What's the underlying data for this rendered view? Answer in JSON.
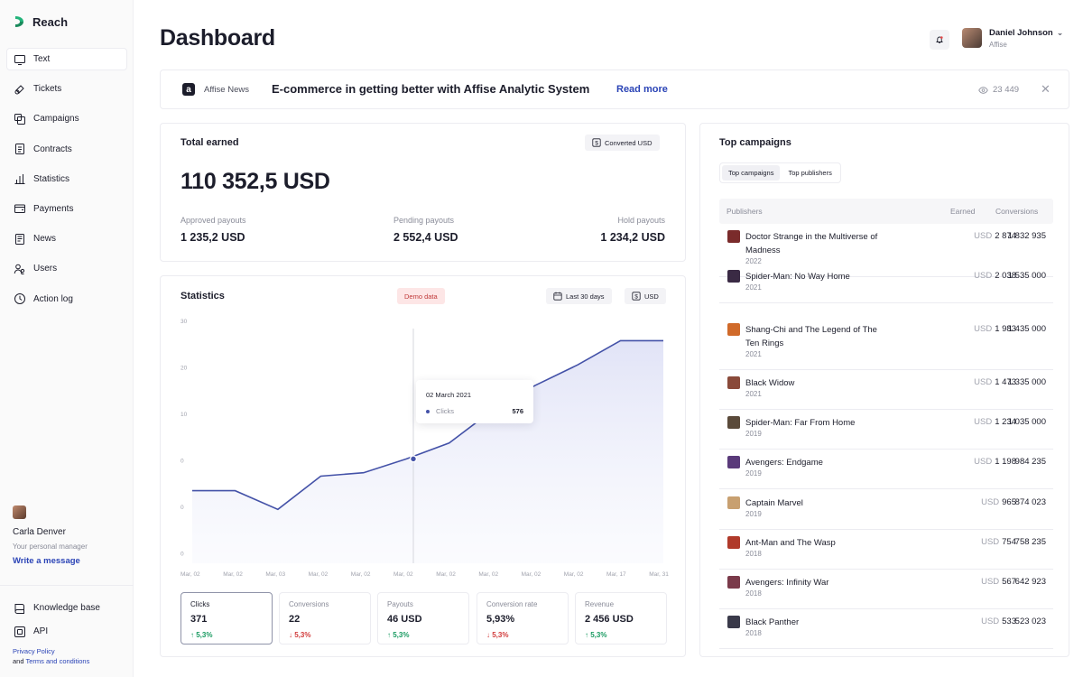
{
  "app": {
    "name": "Reach"
  },
  "sidebar": {
    "items": [
      {
        "label": "Text",
        "icon": "monitor-icon",
        "active": true
      },
      {
        "label": "Tickets",
        "icon": "ticket-icon"
      },
      {
        "label": "Campaigns",
        "icon": "stack-icon"
      },
      {
        "label": "Contracts",
        "icon": "document-icon"
      },
      {
        "label": "Statistics",
        "icon": "bar-chart-icon"
      },
      {
        "label": "Payments",
        "icon": "wallet-icon"
      },
      {
        "label": "News",
        "icon": "newspaper-icon"
      },
      {
        "label": "Users",
        "icon": "users-icon"
      },
      {
        "label": "Action log",
        "icon": "clock-icon"
      }
    ],
    "manager": {
      "name": "Carla Denver",
      "role": "Your personal manager",
      "link": "Write a message"
    },
    "bottom": [
      {
        "label": "Knowledge base",
        "icon": "book-icon"
      },
      {
        "label": "API",
        "icon": "api-icon"
      }
    ],
    "legal": {
      "privacy": "Privacy Policy",
      "and": "and",
      "terms": "Terms and conditions"
    }
  },
  "header": {
    "title": "Dashboard",
    "user": {
      "name": "Daniel Johnson",
      "org": "Affise"
    }
  },
  "news": {
    "source": "Affise News",
    "headline": "E-commerce in getting better with Affise Analytic System",
    "read_more": "Read more",
    "views": "23 449"
  },
  "earned": {
    "title": "Total earned",
    "badge": "Converted USD",
    "total": "110 352,5 USD",
    "payouts": [
      {
        "label": "Approved payouts",
        "value": "1 235,2 USD"
      },
      {
        "label": "Pending payouts",
        "value": "2 552,4 USD"
      },
      {
        "label": "Hold payouts",
        "value": "1 234,2 USD"
      }
    ]
  },
  "statistics": {
    "title": "Statistics",
    "demo": "Demo data",
    "period": "Last 30 days",
    "currency": "USD",
    "tooltip": {
      "date": "02 March 2021",
      "label": "Clicks",
      "value": "576"
    },
    "metrics": [
      {
        "label": "Clicks",
        "value": "371",
        "change": "5,3%",
        "dir": "up",
        "active": true
      },
      {
        "label": "Conversions",
        "value": "22",
        "change": "5,3%",
        "dir": "down"
      },
      {
        "label": "Payouts",
        "value": "46 USD",
        "change": "5,3%",
        "dir": "up"
      },
      {
        "label": "Conversion rate",
        "value": "5,93%",
        "change": "5,3%",
        "dir": "down"
      },
      {
        "label": "Revenue",
        "value": "2 456 USD",
        "change": "5,3%",
        "dir": "up"
      }
    ]
  },
  "chart_data": {
    "type": "area",
    "x": [
      "Mar, 02",
      "Mar, 02",
      "Mar, 03",
      "Mar, 02",
      "Mar, 02",
      "Mar, 02",
      "Mar, 02",
      "Mar, 02",
      "Mar, 02",
      "Mar, 02",
      "Mar, 17",
      "Mar, 31"
    ],
    "y_ticks": [
      "30",
      "20",
      "10",
      "0",
      "0",
      "0"
    ],
    "series": [
      {
        "values": [
          5.5,
          5.5,
          2.8,
          7.6,
          8.1,
          10.1,
          12.4,
          17.1,
          20.7,
          23.7,
          27.2,
          27.2
        ]
      }
    ],
    "ylim": [
      -5,
      30
    ],
    "highlight_index": 6,
    "line_color": "#4452a8"
  },
  "top_campaigns": {
    "title": "Top campaigns",
    "tabs": [
      {
        "label": "Top campaigns",
        "active": true
      },
      {
        "label": "Top publishers"
      }
    ],
    "columns": {
      "publishers": "Publishers",
      "earned": "Earned",
      "conversions": "Conversions"
    },
    "rows": [
      {
        "title": "Doctor Strange in the Multiverse of Madness",
        "year": "2022",
        "currency": "USD",
        "earned": "2 874",
        "conversions": "1 832 935",
        "color": "#7a2b2b"
      },
      {
        "title": "Spider-Man: No Way Home",
        "year": "2021",
        "currency": "USD",
        "earned": "2 038",
        "conversions": "1 535 000",
        "color": "#3a2a44"
      },
      {
        "title": "Shang-Chi and The Legend of The Ten Rings",
        "year": "2021",
        "currency": "USD",
        "earned": "1 983",
        "conversions": "1 435 000",
        "color": "#d06a2a"
      },
      {
        "title": "Black Widow",
        "year": "2021",
        "currency": "USD",
        "earned": "1 473",
        "conversions": "1 335 000",
        "color": "#8a4a3a"
      },
      {
        "title": "Spider-Man: Far From Home",
        "year": "2019",
        "currency": "USD",
        "earned": "1 234",
        "conversions": "1 035 000",
        "color": "#5a4a3a"
      },
      {
        "title": "Avengers: Endgame",
        "year": "2019",
        "currency": "USD",
        "earned": "1 198",
        "conversions": "984 235",
        "color": "#5a3a7a"
      },
      {
        "title": "Captain Marvel",
        "year": "2019",
        "currency": "USD",
        "earned": "965",
        "conversions": "874 023",
        "color": "#c8a070"
      },
      {
        "title": "Ant-Man and The Wasp",
        "year": "2018",
        "currency": "USD",
        "earned": "754",
        "conversions": "758 235",
        "color": "#b03a2a"
      },
      {
        "title": "Avengers: Infinity War",
        "year": "2018",
        "currency": "USD",
        "earned": "567",
        "conversions": "642 923",
        "color": "#7a3a4a"
      },
      {
        "title": "Black Panther",
        "year": "2018",
        "currency": "USD",
        "earned": "533",
        "conversions": "523 023",
        "color": "#3a3a4a"
      }
    ]
  }
}
